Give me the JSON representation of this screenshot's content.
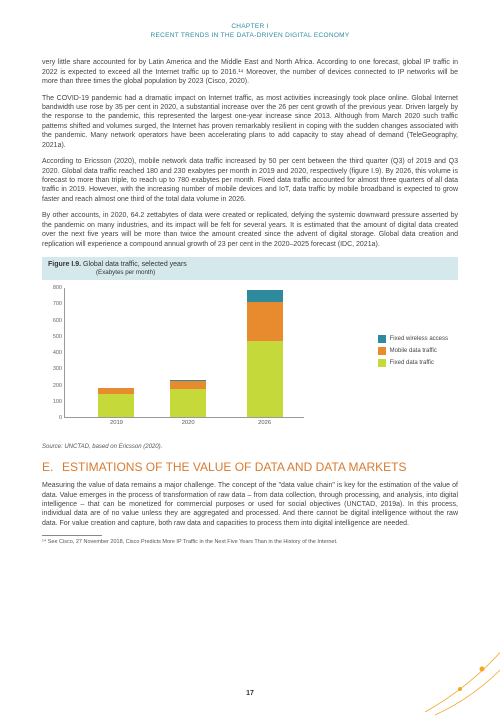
{
  "chapter_header": {
    "line1": "CHAPTER I",
    "line2": "RECENT TRENDS IN THE DATA-DRIVEN DIGITAL ECONOMY"
  },
  "paragraphs": {
    "p1": "very little share accounted for by Latin America and the Middle East and North Africa. According to one forecast, global IP traffic in 2022 is expected to exceed all the Internet traffic up to 2016.¹⁴ Moreover, the number of devices connected to IP networks will be more than three times the global population by 2023 (Cisco, 2020).",
    "p2": "The COVID-19 pandemic had a dramatic impact on Internet traffic, as most activities increasingly took place online. Global Internet bandwidth use rose by 35 per cent in 2020, a substantial increase over the 26 per cent growth of the previous year. Driven largely by the response to the pandemic, this represented the largest one-year increase since 2013. Although from March 2020 such traffic patterns shifted and volumes surged, the Internet has proven remarkably resilient in coping with the sudden changes associated with the pandemic. Many network operators have been accelerating plans to add capacity to stay ahead of demand (TeleGeography, 2021a).",
    "p3": "According to Ericsson (2020), mobile network data traffic increased by 50 per cent between the third quarter (Q3) of 2019 and Q3 2020. Global data traffic reached 180 and 230 exabytes per month in 2019 and 2020, respectively (figure I.9). By 2026, this volume is forecast to more than triple, to reach up to 780 exabytes per month. Fixed data traffic accounted for almost three quarters of all data traffic in 2019. However, with the increasing number of mobile devices and IoT, data traffic by mobile broadband is expected to grow faster and reach almost one third of the total data volume in 2026.",
    "p4": "By other accounts, in 2020, 64.2 zettabytes of data were created or replicated, defying the systemic downward pressure asserted by the pandemic on many industries, and its impact will be felt for several years. It is estimated that the amount of digital data created over the next five years will be more than twice the amount created since the advent of digital storage. Global data creation and replication will experience a compound annual growth of 23 per cent in the 2020–2025 forecast (IDC, 2021a)."
  },
  "figure": {
    "number": "Figure I.9.",
    "title": "Global data traffic, selected years",
    "subtitle": "(Exabytes per month)",
    "y_ticks": [
      0,
      100,
      200,
      300,
      400,
      500,
      600,
      700,
      800
    ],
    "y_max": 800,
    "categories": [
      "2019",
      "2020",
      "2026"
    ],
    "series": [
      {
        "name": "Fixed data traffic",
        "color": "#c5d93a",
        "values": [
          140,
          170,
          470
        ]
      },
      {
        "name": "Mobile data traffic",
        "color": "#e88b2e",
        "values": [
          38,
          55,
          240
        ]
      },
      {
        "name": "Fixed wireless access",
        "color": "#2e8b9e",
        "values": [
          2,
          5,
          70
        ]
      }
    ],
    "bar_positions_pct": [
      14,
      44,
      76
    ],
    "legend_order": [
      "Fixed wireless access",
      "Mobile data traffic",
      "Fixed data traffic"
    ],
    "legend_colors": {
      "Fixed wireless access": "#2e8b9e",
      "Mobile data traffic": "#e88b2e",
      "Fixed data traffic": "#c5d93a"
    },
    "title_bar_bg": "#d5e8ec"
  },
  "source_line": "Source: UNCTAD, based on Ericsson (2020).",
  "section": {
    "letter": "E.",
    "title": "ESTIMATIONS OF THE VALUE OF DATA AND DATA MARKETS",
    "color": "#d97b2e"
  },
  "section_paragraph": "Measuring the value of data remains a major challenge. The concept of the \"data value chain\" is key for the estimation of the value of data. Value emerges in the process of transformation of raw data – from data collection, through processing, and analysis, into digital intelligence – that can be monetized for commercial purposes or used for social objectives (UNCTAD, 2019a). In this process, individual data are of no value unless they are aggregated and processed. And there cannot be digital intelligence without the raw data. For value creation and capture, both raw data and capacities to process them into digital intelligence are needed.",
  "footnote": {
    "marker": "¹⁴",
    "text": "See Cisco, 27 November 2018, Cisco Predicts More IP Traffic in the Next Five Years Than in the History of the Internet."
  },
  "page_number": "17",
  "deco_color": "#f5a623"
}
